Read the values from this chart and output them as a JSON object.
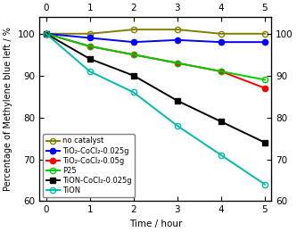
{
  "time": [
    0,
    1,
    2,
    3,
    4,
    5
  ],
  "series": [
    {
      "key": "no catalyst",
      "values": [
        100,
        100,
        101,
        101,
        100,
        100
      ],
      "color": "#808000",
      "marker": "o",
      "filled": false,
      "label": "no catalyst"
    },
    {
      "key": "TiO2-CoCl2-0.025g",
      "values": [
        100,
        99,
        98,
        98.5,
        98,
        98
      ],
      "color": "#0000FF",
      "marker": "o",
      "filled": true,
      "label": "TiO₂-CoCl₂-0.025g"
    },
    {
      "key": "TiO2-CoCl2-0.05g",
      "values": [
        100,
        97,
        95,
        93,
        91,
        87
      ],
      "color": "#FF0000",
      "marker": "o",
      "filled": true,
      "label": "TiO₂-CoCl₂-0.05g"
    },
    {
      "key": "P25",
      "values": [
        100,
        97,
        95,
        93,
        91,
        89
      ],
      "color": "#00CC00",
      "marker": "o",
      "filled": false,
      "label": "P25"
    },
    {
      "key": "TiON-CoCl2-0.025g",
      "values": [
        100,
        94,
        90,
        84,
        79,
        74
      ],
      "color": "#000000",
      "marker": "s",
      "filled": true,
      "label": "TiON-CoCl₂-0.025g"
    },
    {
      "key": "TiON",
      "values": [
        100,
        91,
        86,
        78,
        71,
        64
      ],
      "color": "#00BBAA",
      "marker": "o",
      "filled": false,
      "label": "TiON"
    }
  ],
  "xlabel": "Time / hour",
  "ylabel": "Percentage of Methylene blue left / %",
  "ylim": [
    60,
    104
  ],
  "yticks": [
    60,
    70,
    80,
    90,
    100
  ],
  "xlim": [
    -0.15,
    5.15
  ],
  "xticks": [
    0,
    1,
    2,
    3,
    4,
    5
  ],
  "background_color": "#ffffff",
  "legend_fontsize": 6.0,
  "axis_fontsize": 7.5,
  "tick_fontsize": 7.5
}
